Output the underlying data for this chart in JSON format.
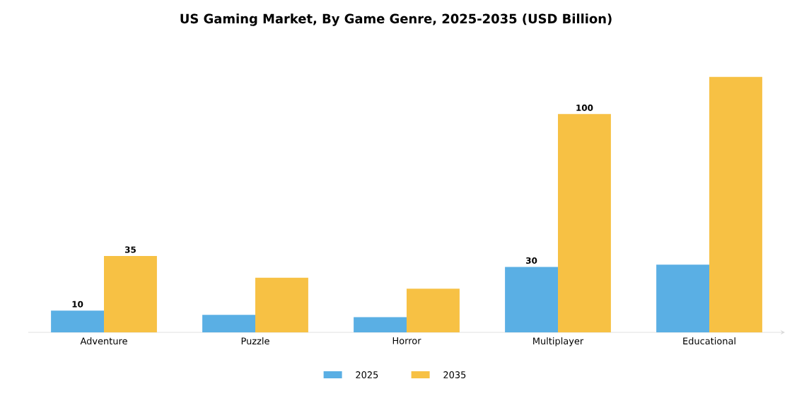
{
  "chart_data": {
    "type": "bar",
    "title": "US Gaming Market, By Game Genre, 2025-2035 (USD Billion)",
    "categories": [
      "Adventure",
      "Puzzle",
      "Horror",
      "Multiplayer",
      "Educational"
    ],
    "series": [
      {
        "name": "2025",
        "color": "#5aafe4",
        "values": [
          10,
          8,
          7,
          30,
          31
        ],
        "value_labels": [
          "10",
          null,
          null,
          "30",
          null
        ]
      },
      {
        "name": "2035",
        "color": "#f7c144",
        "values": [
          35,
          25,
          20,
          100,
          117
        ],
        "value_labels": [
          "35",
          null,
          null,
          "100",
          null
        ]
      }
    ],
    "legend": "bottom",
    "tick_labels": "x",
    "grid": false
  }
}
